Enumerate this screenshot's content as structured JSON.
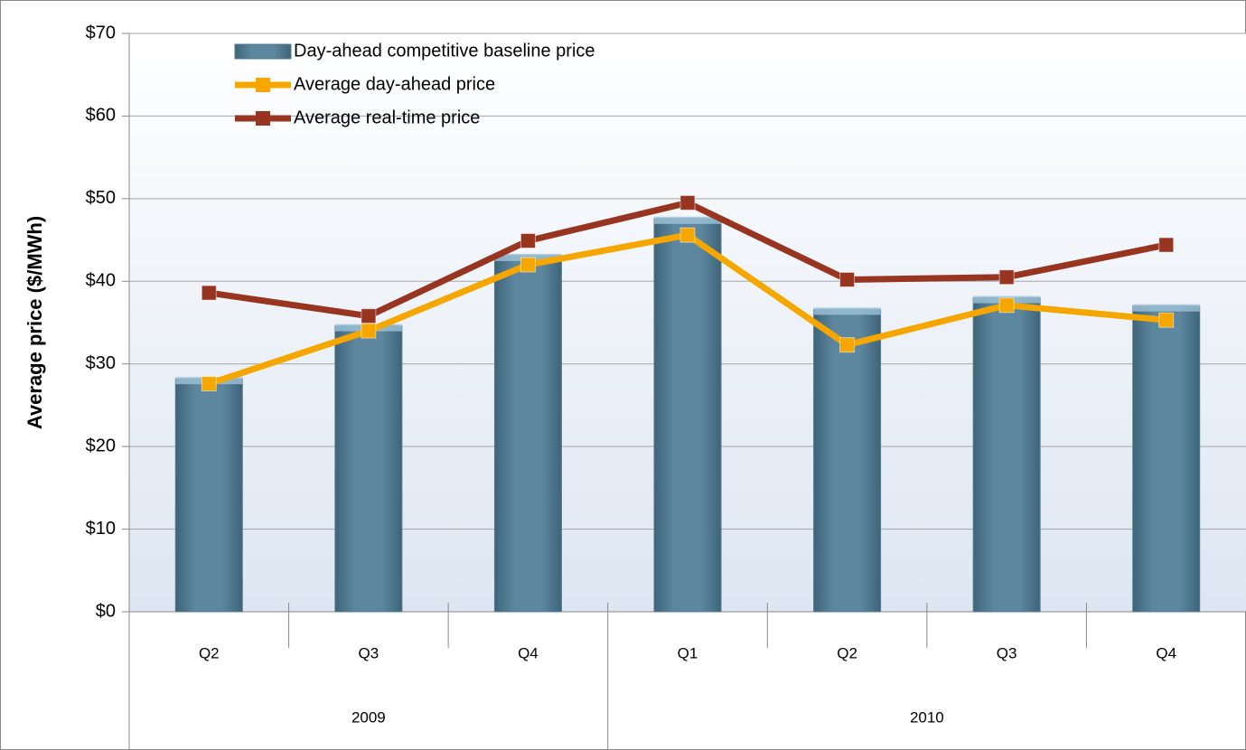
{
  "chart_data": {
    "type": "bar-line",
    "y_label": "Average price ($/MWh)",
    "groups": [
      {
        "label": "2009",
        "categories": [
          "Q2",
          "Q3",
          "Q4"
        ]
      },
      {
        "label": "2010",
        "categories": [
          "Q1",
          "Q2",
          "Q3",
          "Q4"
        ]
      }
    ],
    "series": [
      {
        "name": "Day-ahead competitive  baseline price",
        "type": "bar",
        "color": "#537b93",
        "values": [
          28.2,
          34.6,
          43.1,
          47.6,
          36.6,
          38.0,
          37.0
        ]
      },
      {
        "name": "Average day-ahead price",
        "type": "line",
        "color": "#f5a700",
        "values": [
          27.6,
          34.0,
          42.0,
          45.6,
          32.3,
          37.1,
          35.3
        ]
      },
      {
        "name": "Average real-time price",
        "type": "line",
        "color": "#973520",
        "values": [
          38.6,
          35.8,
          44.9,
          49.5,
          40.2,
          40.5,
          44.4
        ]
      }
    ],
    "ylim": [
      0,
      70
    ],
    "yticks": [
      {
        "value": 0,
        "label": "$0"
      },
      {
        "value": 10,
        "label": "$10"
      },
      {
        "value": 20,
        "label": "$20"
      },
      {
        "value": 30,
        "label": "$30"
      },
      {
        "value": 40,
        "label": "$40"
      },
      {
        "value": 50,
        "label": "$50"
      },
      {
        "value": 60,
        "label": "$60"
      },
      {
        "value": 70,
        "label": "$70"
      }
    ],
    "grid": true,
    "legend": "top-left"
  }
}
